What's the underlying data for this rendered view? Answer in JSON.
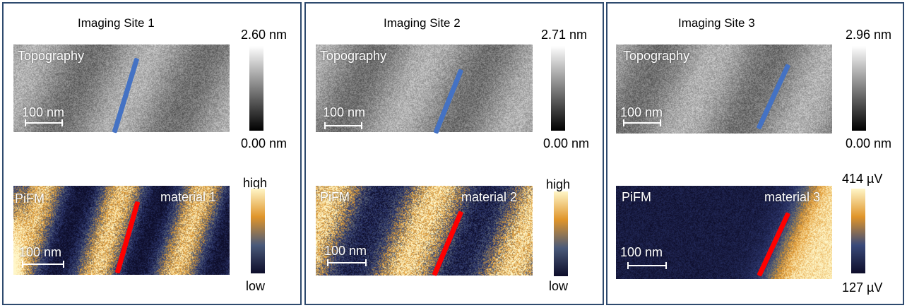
{
  "panels": [
    {
      "title": "Imaging Site 1",
      "topography": {
        "label": "Topography",
        "scalebar": "100 nm",
        "cbar_max": "2.60 nm",
        "cbar_min": "0.00 nm"
      },
      "pifm": {
        "label": "PiFM",
        "material": "material 1",
        "scalebar": "100 nm",
        "cbar_max": "high",
        "cbar_min": "low"
      }
    },
    {
      "title": "Imaging Site 2",
      "topography": {
        "label": "Topography",
        "scalebar": "100 nm",
        "cbar_max": "2.71 nm",
        "cbar_min": "0.00 nm"
      },
      "pifm": {
        "label": "PiFM",
        "material": "material 2",
        "scalebar": "100 nm",
        "cbar_max": "high",
        "cbar_min": "low"
      }
    },
    {
      "title": "Imaging Site 3",
      "topography": {
        "label": "Topography",
        "scalebar": "100 nm",
        "cbar_max": "2.96 nm",
        "cbar_min": "0.00 nm"
      },
      "pifm": {
        "label": "PiFM",
        "material": "material 3",
        "scalebar": "100 nm",
        "cbar_max": "414 µV",
        "cbar_min": "127 µV"
      }
    }
  ],
  "colors": {
    "frame": "#2e4a6e",
    "topo_line": "#4472c4",
    "pifm_line": "#ff0000",
    "pifm_low": "#0d0d2a",
    "pifm_mid": "#3a4a7a",
    "pifm_orange": "#e0952a",
    "pifm_high": "#fff6c8"
  }
}
